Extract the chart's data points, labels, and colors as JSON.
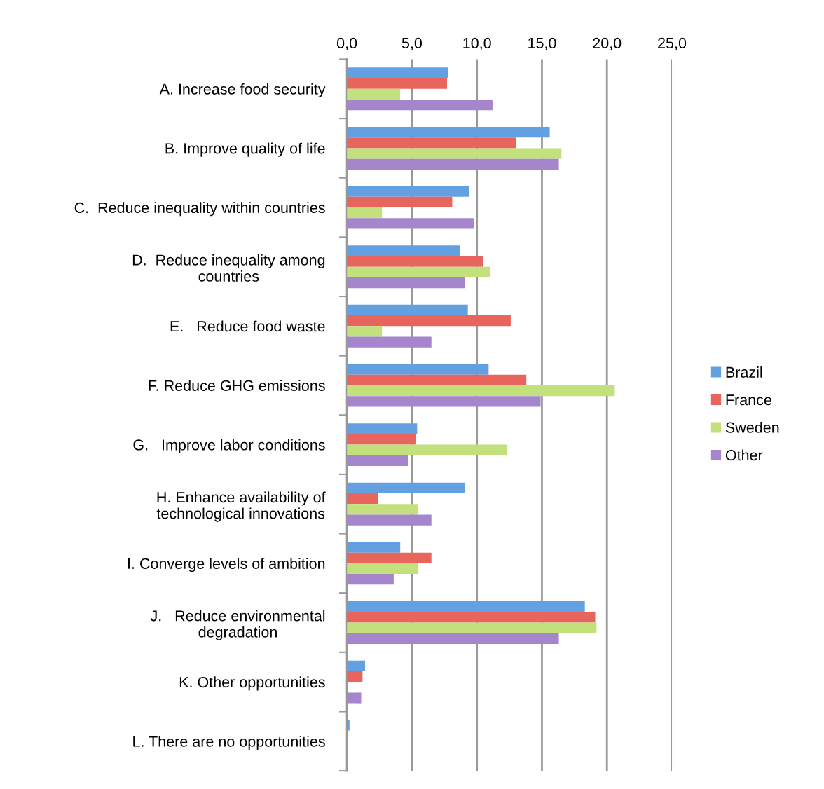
{
  "chart_data": {
    "type": "bar",
    "orientation": "horizontal",
    "categories": [
      "A. Increase food security",
      "B. Improve quality of life",
      "C.  Reduce inequality within countries",
      "D.  Reduce inequality among\ncountries",
      "E.   Reduce food waste",
      "F. Reduce GHG emissions",
      "G.   Improve labor conditions",
      "H. Enhance availability of\ntechnological innovations",
      "I. Converge levels of ambition",
      "J.   Reduce environmental\ndegradation",
      "K. Other opportunities",
      "L. There are no opportunities"
    ],
    "series": [
      {
        "name": "Brazil",
        "color": "#62a0e2",
        "values": [
          7.8,
          15.6,
          9.4,
          8.7,
          9.3,
          10.9,
          5.4,
          9.1,
          4.1,
          18.3,
          1.4,
          0.2
        ]
      },
      {
        "name": "France",
        "color": "#e8655d",
        "values": [
          7.7,
          13.0,
          8.1,
          10.5,
          12.6,
          13.8,
          5.3,
          2.4,
          6.5,
          19.1,
          1.2,
          0
        ]
      },
      {
        "name": "Sweden",
        "color": "#c2e07c",
        "values": [
          4.1,
          16.5,
          2.7,
          11.0,
          2.7,
          20.6,
          12.3,
          5.5,
          5.5,
          19.2,
          0,
          0
        ]
      },
      {
        "name": "Other",
        "color": "#a585cc",
        "values": [
          11.2,
          16.3,
          9.8,
          9.1,
          6.5,
          14.9,
          4.7,
          6.5,
          3.6,
          16.3,
          1.1,
          0
        ]
      }
    ],
    "xlim": [
      0,
      25
    ],
    "xticks": [
      {
        "value": 0,
        "label": "0,0"
      },
      {
        "value": 5,
        "label": "5,0"
      },
      {
        "value": 10,
        "label": "10,0"
      },
      {
        "value": 15,
        "label": "15,0"
      },
      {
        "value": 20,
        "label": "20,0"
      },
      {
        "value": 25,
        "label": "25,0"
      }
    ],
    "grid": "x",
    "legend": "right"
  }
}
